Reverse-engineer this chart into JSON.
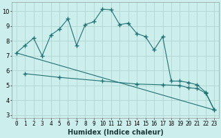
{
  "xlabel": "Humidex (Indice chaleur)",
  "bg_color": "#cceeed",
  "grid_color": "#b0d4d0",
  "line_color": "#1e7070",
  "xlim": [
    -0.5,
    23.5
  ],
  "ylim": [
    2.8,
    10.6
  ],
  "yticks": [
    3,
    4,
    5,
    6,
    7,
    8,
    9,
    10
  ],
  "xticks": [
    0,
    1,
    2,
    3,
    4,
    5,
    6,
    7,
    8,
    9,
    10,
    11,
    12,
    13,
    14,
    15,
    16,
    17,
    18,
    19,
    20,
    21,
    22,
    23
  ],
  "line1_x": [
    0,
    1,
    2,
    3,
    4,
    5,
    6,
    7,
    8,
    9,
    10,
    11,
    12,
    13,
    14,
    15,
    16,
    17,
    18,
    19,
    20,
    21,
    22,
    23
  ],
  "line1_y": [
    7.2,
    7.7,
    8.2,
    7.0,
    8.4,
    8.8,
    9.5,
    7.7,
    9.1,
    9.3,
    10.15,
    10.1,
    9.1,
    9.2,
    8.5,
    8.3,
    7.4,
    8.3,
    5.3,
    5.3,
    5.2,
    5.05,
    4.55,
    3.35
  ],
  "line2_x": [
    1,
    5,
    10,
    14,
    17,
    19,
    20,
    21,
    22,
    23
  ],
  "line2_y": [
    5.8,
    5.55,
    5.3,
    5.1,
    5.05,
    5.0,
    4.85,
    4.8,
    4.5,
    3.35
  ],
  "line3_x": [
    0,
    23
  ],
  "line3_y": [
    7.2,
    3.35
  ],
  "xlabel_fontsize": 7,
  "tick_fontsize": 5.5
}
